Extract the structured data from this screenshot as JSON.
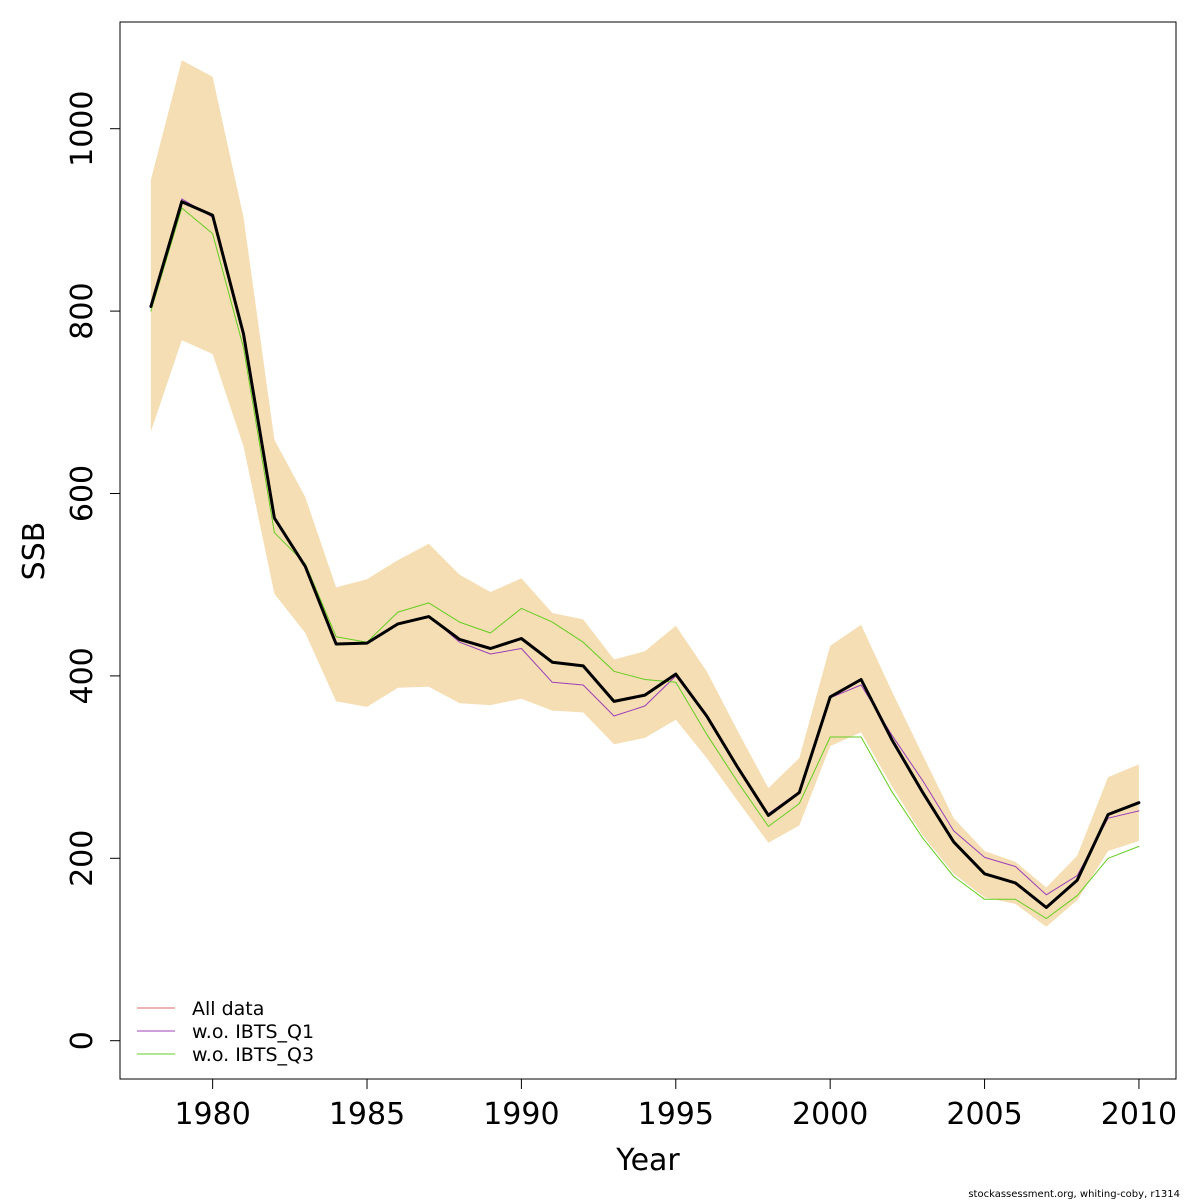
{
  "chart_data": {
    "type": "line",
    "xlabel": "Year",
    "ylabel": "SSB",
    "xlim": [
      1977,
      2011.2
    ],
    "ylim": [
      -42,
      1117
    ],
    "xticks": [
      1980,
      1985,
      1990,
      1995,
      2000,
      2005,
      2010
    ],
    "yticks": [
      0,
      200,
      400,
      600,
      800,
      1000
    ],
    "x": [
      1978,
      1979,
      1980,
      1981,
      1982,
      1983,
      1984,
      1985,
      1986,
      1987,
      1988,
      1989,
      1990,
      1991,
      1992,
      1993,
      1994,
      1995,
      1996,
      1997,
      1998,
      1999,
      2000,
      2001,
      2002,
      2003,
      2004,
      2005,
      2006,
      2007,
      2008,
      2009,
      2010
    ],
    "band": {
      "color": "#f5deb3",
      "lower": [
        668,
        768,
        753,
        652,
        490,
        447,
        372,
        366,
        387,
        388,
        370,
        368,
        375,
        362,
        360,
        325,
        332,
        352,
        310,
        263,
        217,
        236,
        323,
        338,
        279,
        225,
        183,
        157,
        150,
        125,
        154,
        208,
        219
      ],
      "upper": [
        944,
        1075,
        1057,
        903,
        659,
        596,
        497,
        506,
        527,
        545,
        511,
        492,
        507,
        469,
        462,
        418,
        427,
        455,
        405,
        340,
        277,
        310,
        433,
        456,
        383,
        313,
        244,
        208,
        196,
        168,
        203,
        289,
        303
      ]
    },
    "series": [
      {
        "name": "All data",
        "color": "#e26a6a",
        "width": 1,
        "values": [
          805,
          920,
          905,
          775,
          573,
          520,
          435,
          436,
          457,
          465,
          440,
          430,
          441,
          415,
          411,
          372,
          379,
          402,
          356,
          300,
          247,
          272,
          377,
          396,
          330,
          272,
          218,
          183,
          173,
          146,
          176,
          248,
          261
        ]
      },
      {
        "name": "w.o. IBTS_Q1",
        "color": "#9c3fb8",
        "width": 1,
        "values": [
          805,
          923,
          903,
          772,
          573,
          520,
          435,
          436,
          456,
          466,
          437,
          424,
          430,
          393,
          390,
          356,
          367,
          400,
          356,
          300,
          249,
          273,
          376,
          390,
          335,
          285,
          230,
          201,
          191,
          160,
          181,
          244,
          252
        ]
      },
      {
        "name": "w.o. IBTS_Q3",
        "color": "#66cc22",
        "width": 1,
        "values": [
          800,
          913,
          885,
          760,
          557,
          523,
          443,
          437,
          470,
          480,
          459,
          447,
          474,
          459,
          437,
          405,
          396,
          393,
          336,
          284,
          235,
          260,
          333,
          333,
          273,
          222,
          180,
          155,
          155,
          134,
          159,
          200,
          213
        ]
      },
      {
        "name": "",
        "color": "#000000",
        "width": 3,
        "values": [
          805,
          920,
          905,
          775,
          573,
          520,
          435,
          436,
          457,
          465,
          440,
          430,
          441,
          415,
          411,
          372,
          379,
          402,
          356,
          300,
          247,
          272,
          377,
          396,
          330,
          272,
          218,
          183,
          173,
          146,
          176,
          248,
          261
        ]
      }
    ],
    "legend": {
      "position": "bottom-left",
      "entries": [
        "All data",
        "w.o. IBTS_Q1",
        "w.o. IBTS_Q3"
      ]
    }
  },
  "credit": "stockassessment.org, whiting-coby, r1314"
}
